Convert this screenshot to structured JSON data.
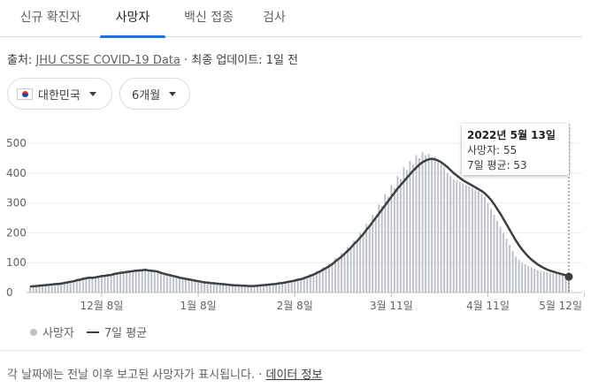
{
  "tabs": [
    {
      "label": "신규 확진자"
    },
    {
      "label": "사망자"
    },
    {
      "label": "백신 접종"
    },
    {
      "label": "검사"
    }
  ],
  "source": {
    "prefix": "출처:",
    "link": "JHU CSSE COVID-19 Data",
    "suffix": "· 최종 업데이트: 1일 전"
  },
  "filters": {
    "country": "대한민국",
    "period": "6개월"
  },
  "tooltip": {
    "date": "2022년 5월 13일",
    "deaths": "사망자: 55",
    "avg": "7일 평균: 53"
  },
  "legend": {
    "bars": "사망자",
    "line": "7일 평균"
  },
  "footer": {
    "text": "각 날짜에는 전날 이후 보고된 사망자가 표시됩니다. ·",
    "link": "데이터 정보"
  },
  "colors": {
    "bar": "#bdc1c6",
    "line": "#3c4043",
    "accent": "#1a73e8"
  },
  "chart_data": {
    "type": "bar",
    "ylim": [
      0,
      500
    ],
    "yticks": [
      0,
      100,
      200,
      300,
      400,
      500
    ],
    "x_tick_labels": [
      "12월 8일",
      "1월 8일",
      "2월 8일",
      "3월 11일",
      "4월 11일",
      "5월 12일"
    ],
    "x_tick_days": [
      23,
      54,
      85,
      116,
      147,
      178
    ],
    "series": [
      {
        "name": "사망자",
        "type": "bar",
        "values": [
          20,
          23,
          22,
          26,
          24,
          29,
          25,
          31,
          28,
          33,
          30,
          37,
          34,
          40,
          38,
          45,
          43,
          50,
          48,
          52,
          46,
          55,
          50,
          58,
          55,
          62,
          58,
          66,
          62,
          70,
          65,
          72,
          68,
          74,
          70,
          78,
          73,
          80,
          70,
          75,
          68,
          72,
          62,
          60,
          55,
          58,
          50,
          52,
          48,
          46,
          44,
          42,
          40,
          38,
          36,
          34,
          33,
          32,
          30,
          31,
          28,
          27,
          26,
          25,
          24,
          24,
          23,
          22,
          23,
          21,
          22,
          20,
          22,
          23,
          25,
          24,
          27,
          26,
          29,
          28,
          33,
          32,
          37,
          36,
          42,
          40,
          47,
          45,
          55,
          52,
          62,
          60,
          72,
          70,
          85,
          80,
          98,
          95,
          115,
          112,
          132,
          130,
          152,
          150,
          175,
          170,
          200,
          195,
          230,
          225,
          260,
          255,
          295,
          290,
          330,
          320,
          360,
          350,
          390,
          380,
          420,
          410,
          440,
          430,
          460,
          450,
          470,
          460,
          465,
          450,
          455,
          440,
          430,
          420,
          400,
          390,
          380,
          375,
          370,
          365,
          360,
          355,
          350,
          345,
          340,
          330,
          320,
          300,
          280,
          260,
          240,
          220,
          200,
          180,
          160,
          140,
          120,
          110,
          100,
          95,
          90,
          85,
          80,
          75,
          72,
          70,
          68,
          66,
          64,
          62,
          60,
          58,
          56,
          55
        ]
      },
      {
        "name": "7일 평균",
        "type": "line",
        "values": [
          20,
          21,
          22,
          23,
          24,
          25,
          26,
          27,
          28,
          29,
          30,
          32,
          34,
          36,
          38,
          41,
          43,
          46,
          48,
          50,
          49,
          51,
          53,
          55,
          56,
          58,
          59,
          62,
          64,
          66,
          67,
          69,
          70,
          72,
          73,
          74,
          75,
          76,
          74,
          73,
          72,
          70,
          66,
          63,
          60,
          58,
          55,
          53,
          50,
          48,
          46,
          44,
          42,
          40,
          38,
          36,
          34,
          33,
          32,
          31,
          30,
          29,
          28,
          27,
          26,
          25,
          24,
          24,
          23,
          23,
          22,
          22,
          22,
          23,
          24,
          25,
          26,
          27,
          28,
          29,
          31,
          32,
          34,
          36,
          38,
          40,
          43,
          45,
          48,
          52,
          56,
          60,
          65,
          70,
          76,
          82,
          88,
          95,
          104,
          112,
          120,
          130,
          140,
          150,
          162,
          172,
          184,
          196,
          210,
          222,
          236,
          250,
          264,
          278,
          292,
          306,
          320,
          334,
          348,
          360,
          372,
          384,
          396,
          408,
          418,
          428,
          436,
          442,
          446,
          448,
          446,
          442,
          436,
          428,
          420,
          410,
          400,
          392,
          384,
          376,
          370,
          364,
          358,
          352,
          346,
          340,
          332,
          322,
          310,
          296,
          280,
          264,
          246,
          228,
          210,
          192,
          174,
          158,
          144,
          132,
          120,
          110,
          102,
          94,
          88,
          82,
          77,
          73,
          70,
          67,
          64,
          61,
          58,
          53
        ]
      }
    ]
  }
}
